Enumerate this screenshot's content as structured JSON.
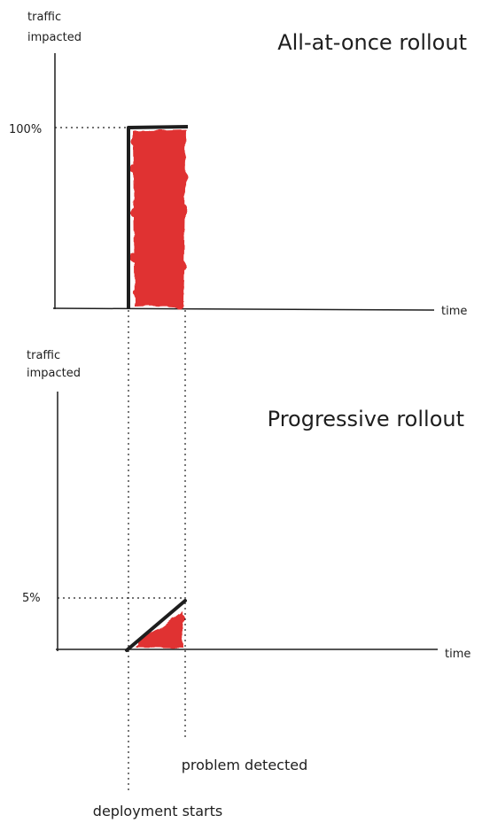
{
  "top_chart": {
    "title": "All-at-once rollout",
    "y_axis_label_line1": "traffic",
    "y_axis_label_line2": "impacted",
    "x_axis_label": "time",
    "level_label": "100%"
  },
  "bottom_chart": {
    "title": "Progressive rollout",
    "y_axis_label_line1": "traffic",
    "y_axis_label_line2": "impacted",
    "x_axis_label": "time",
    "level_label": "5%"
  },
  "markers": {
    "problem_detected": "problem detected",
    "deployment_starts": "deployment starts"
  },
  "colors": {
    "ink": "#1e1e1e",
    "impact_fill": "#e03131"
  }
}
